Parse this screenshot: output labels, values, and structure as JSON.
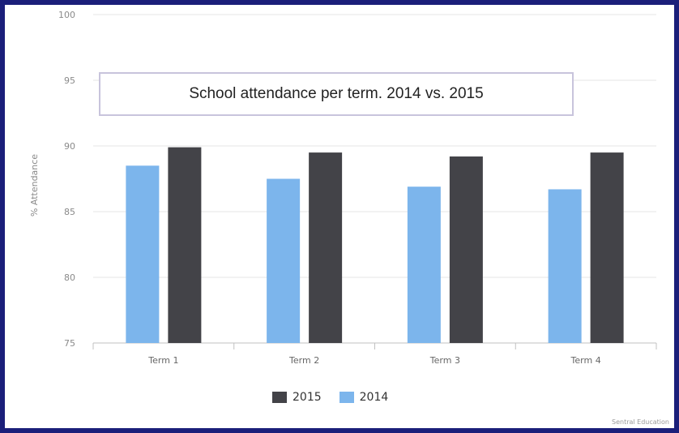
{
  "chart_data": {
    "type": "bar",
    "title": "School attendance per term. 2014 vs. 2015",
    "ylabel": "% Attendance",
    "xlabel": "",
    "categories": [
      "Term 1",
      "Term 2",
      "Term 3",
      "Term 4"
    ],
    "ylim": [
      75,
      100
    ],
    "yticks": [
      75,
      80,
      85,
      90,
      95,
      100
    ],
    "grid": true,
    "legend_position": "bottom",
    "series": [
      {
        "name": "2014",
        "color": "#7cb5ec",
        "values": [
          88.5,
          87.5,
          86.9,
          86.7
        ]
      },
      {
        "name": "2015",
        "color": "#434348",
        "values": [
          89.9,
          89.5,
          89.2,
          89.5
        ]
      }
    ],
    "legend_order": [
      "2015",
      "2014"
    ]
  },
  "credit": "Sentral Education"
}
